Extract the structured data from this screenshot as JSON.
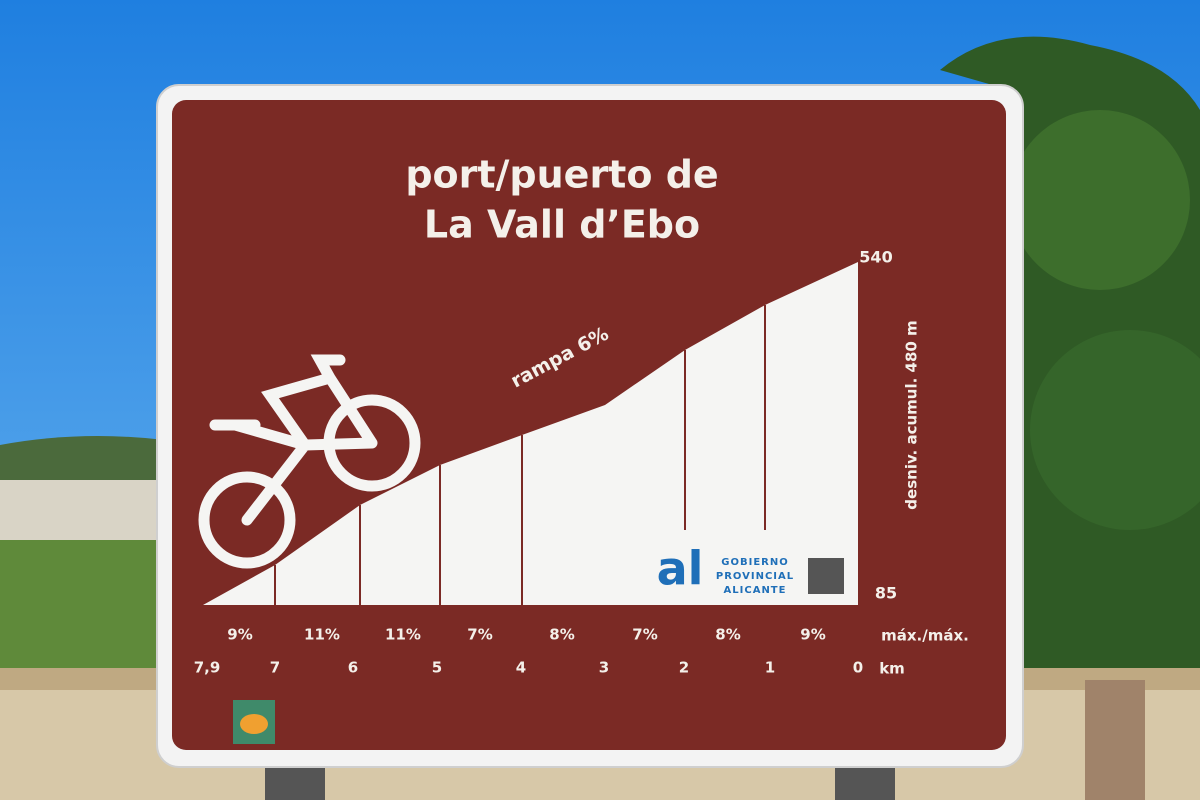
{
  "sign": {
    "title_line1": "port/puerto de",
    "title_line2": "La Vall d’Ebo",
    "elevation_top": "540",
    "elevation_bottom": "85",
    "elevation_gain": "desniv. acumul. 480 m",
    "ramp": "rampa 6%",
    "max_gradients": [
      "9%",
      "11%",
      "11%",
      "7%",
      "8%",
      "7%",
      "8%",
      "9%"
    ],
    "max_label": "máx./máx.",
    "km_marks": [
      "7,9",
      "7",
      "6",
      "5",
      "4",
      "3",
      "2",
      "1",
      "0"
    ],
    "km_unit": "km",
    "logo": {
      "mark": "al",
      "lines": [
        "GOBIERNO",
        "PROVINCIAL",
        "ALICANTE"
      ]
    }
  }
}
